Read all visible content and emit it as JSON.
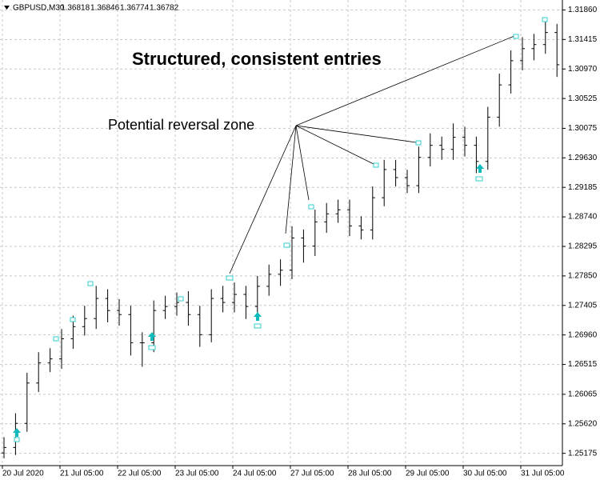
{
  "chart_data": {
    "type": "ohlc",
    "header": "GBPUSD,M30",
    "header_values": [
      1.36818,
      1.36846,
      1.36774,
      1.36782
    ],
    "annotations": [
      "Structured, consistent entries",
      "Potential reversal zone"
    ],
    "categories": [
      "20 Jul 2020",
      null,
      null,
      null,
      null,
      "21 Jul 05:00",
      null,
      null,
      null,
      null,
      "22 Jul 05:00",
      null,
      null,
      null,
      null,
      "23 Jul 05:00",
      null,
      null,
      null,
      null,
      "24 Jul 05:00",
      null,
      null,
      null,
      null,
      "27 Jul 05:00",
      null,
      null,
      null,
      null,
      "28 Jul 05:00",
      null,
      null,
      null,
      null,
      "29 Jul 05:00",
      null,
      null,
      null,
      null,
      "30 Jul 05:00",
      null,
      null,
      null,
      null,
      "31 Jul 05:00",
      null,
      null,
      null
    ],
    "open": [
      1.2518,
      1.25263,
      1.25627,
      1.26235,
      1.26538,
      1.26599,
      1.26903,
      1.27085,
      1.27207,
      1.2751,
      1.27328,
      1.27267,
      1.26842,
      1.26842,
      1.27328,
      1.27389,
      1.2745,
      1.27267,
      1.26964,
      1.2751,
      1.2745,
      1.27571,
      1.27389,
      1.27693,
      1.27875,
      1.27936,
      1.28422,
      1.283,
      1.28665,
      1.28786,
      1.28847,
      1.28604,
      1.28543,
      1.29029,
      1.29454,
      1.29333,
      1.29211,
      1.29637,
      1.29819,
      1.29758,
      1.2994,
      1.29819,
      1.29576,
      1.30244,
      1.3073,
      1.31095,
      1.31277,
      1.31338,
      1.3152
    ],
    "high": [
      1.2542,
      1.2578,
      1.2639,
      1.267,
      1.2676,
      1.2705,
      1.2725,
      1.274,
      1.277,
      1.2765,
      1.275,
      1.274,
      1.27,
      1.2748,
      1.2755,
      1.276,
      1.2762,
      1.274,
      1.2765,
      1.277,
      1.2775,
      1.277,
      1.2785,
      1.2802,
      1.281,
      1.286,
      1.2855,
      1.2885,
      1.2895,
      1.29,
      1.29,
      1.2875,
      1.292,
      1.296,
      1.296,
      1.2945,
      1.298,
      1.3,
      1.2995,
      1.3015,
      1.301,
      1.2995,
      1.304,
      1.309,
      1.3125,
      1.3145,
      1.315,
      1.317,
      1.3165
    ],
    "low": [
      1.251,
      1.2515,
      1.255,
      1.261,
      1.264,
      1.2645,
      1.2675,
      1.2695,
      1.2705,
      1.2715,
      1.271,
      1.2665,
      1.2648,
      1.267,
      1.272,
      1.2725,
      1.271,
      1.2678,
      1.2685,
      1.273,
      1.273,
      1.272,
      1.2725,
      1.2755,
      1.277,
      1.278,
      1.2805,
      1.2815,
      1.285,
      1.2865,
      1.2845,
      1.284,
      1.284,
      1.289,
      1.292,
      1.291,
      1.291,
      1.295,
      1.296,
      1.296,
      1.2965,
      1.294,
      1.2945,
      1.301,
      1.306,
      1.3095,
      1.311,
      1.312,
      1.3085
    ],
    "close": [
      1.25263,
      1.25627,
      1.26235,
      1.26538,
      1.26599,
      1.26903,
      1.27085,
      1.27207,
      1.2751,
      1.27328,
      1.27267,
      1.26842,
      1.26842,
      1.27328,
      1.27389,
      1.2745,
      1.27267,
      1.26964,
      1.2751,
      1.2745,
      1.27571,
      1.27389,
      1.27693,
      1.27875,
      1.27936,
      1.28422,
      1.283,
      1.28665,
      1.28786,
      1.28847,
      1.28604,
      1.28543,
      1.29029,
      1.29454,
      1.29333,
      1.29211,
      1.29637,
      1.29819,
      1.29758,
      1.2994,
      1.29819,
      1.29576,
      1.30244,
      1.3073,
      1.31095,
      1.31277,
      1.31338,
      1.3152,
      1.31034
    ],
    "ylim": [
      1.2499,
      1.3201
    ],
    "yticks": [
      1.25175,
      {
        "value": 1.2562,
        "label": "1.25620"
      },
      1.26065,
      1.26515,
      {
        "value": 1.2696,
        "label": "1.26960"
      },
      1.27405,
      {
        "value": 1.2785,
        "label": "1.27850"
      },
      1.28295,
      {
        "value": 1.2874,
        "label": "1.28740"
      },
      1.29185,
      {
        "value": 1.2963,
        "label": "1.29630"
      },
      1.30075,
      1.30525,
      {
        "value": 1.3097,
        "label": "1.30970"
      },
      1.31415,
      {
        "value": 1.3186,
        "label": "1.31860"
      }
    ],
    "grid": true,
    "color": "#000000"
  }
}
